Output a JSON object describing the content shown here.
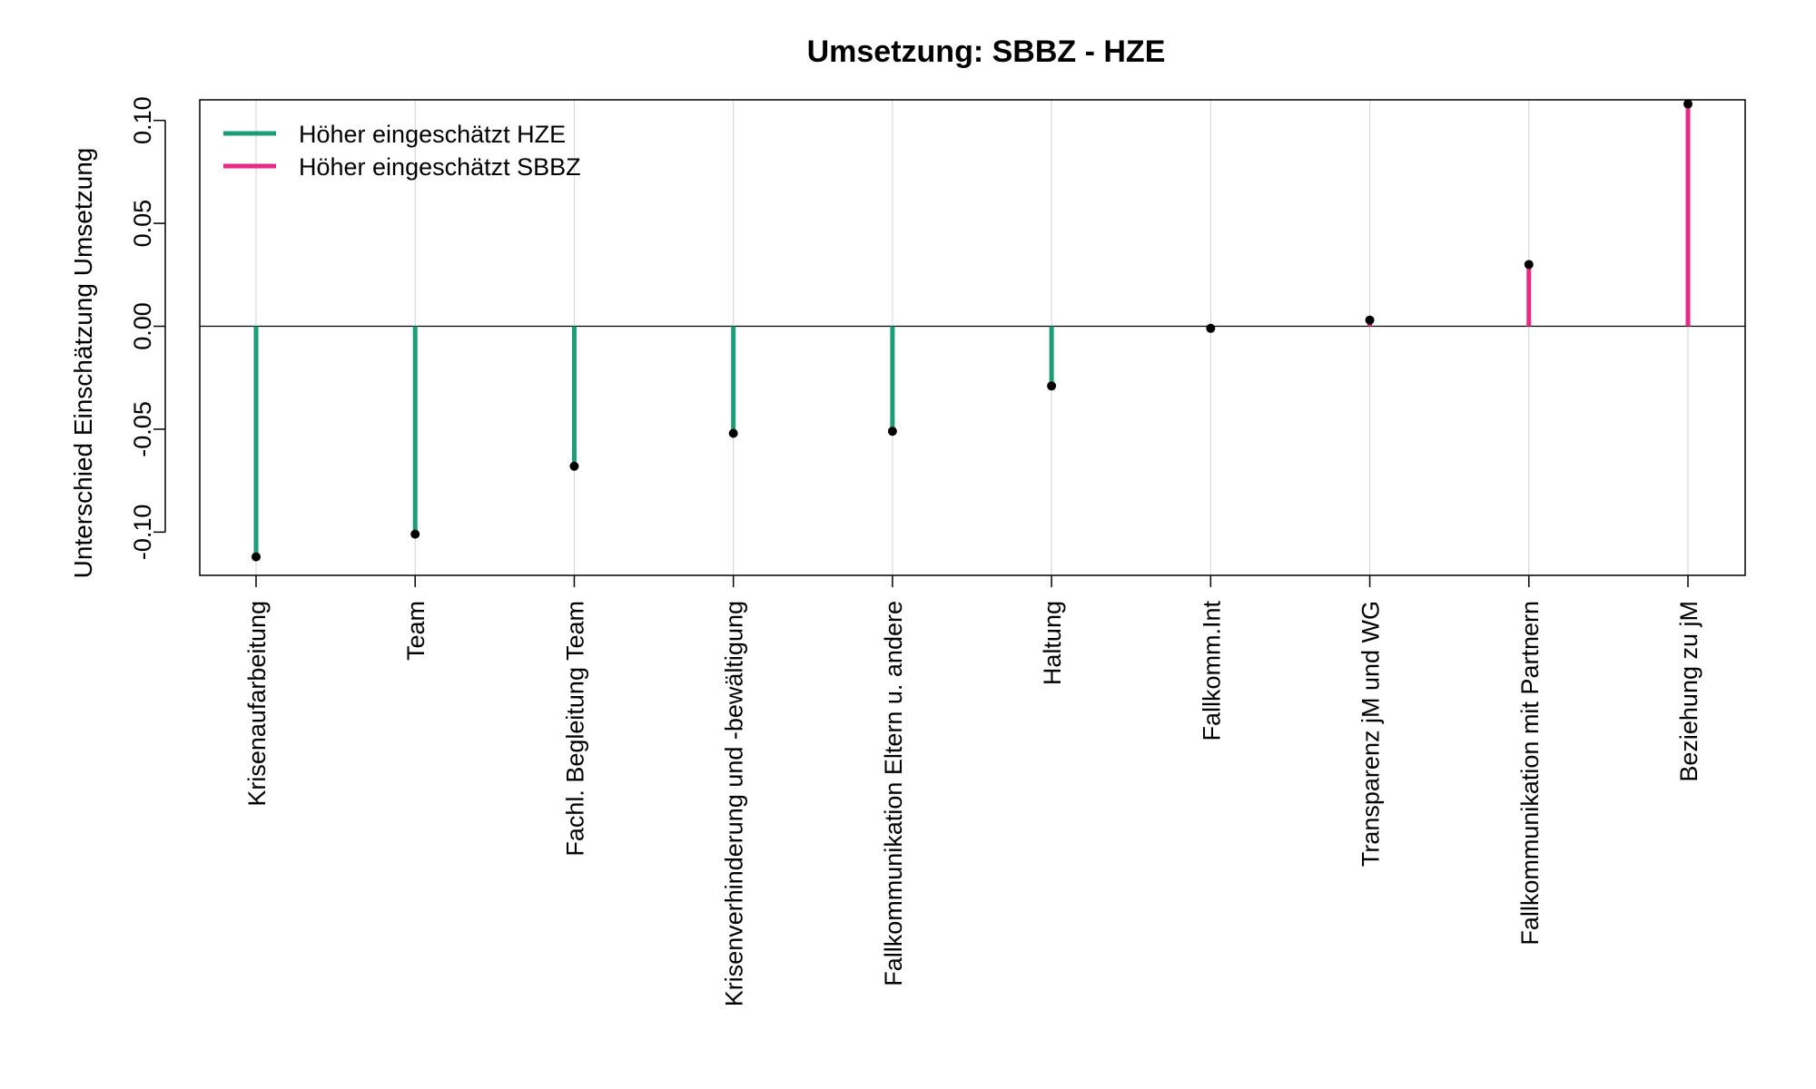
{
  "chart_data": {
    "type": "lollipop",
    "title": "Umsetzung: SBBZ - HZE",
    "xlabel": "",
    "ylabel": "Unterschied Einschätzung Umsetzung",
    "ylim": [
      -0.121,
      0.11
    ],
    "yticks": [
      -0.1,
      -0.05,
      0.0,
      0.05,
      0.1
    ],
    "ytick_labels": [
      "-0.10",
      "-0.05",
      "0.00",
      "0.05",
      "0.10"
    ],
    "categories": [
      "Krisenaufarbeitung",
      "Team",
      "Fachl. Begleitung Team",
      "Krisenverhinderung und -bewältigung",
      "Fallkommunikation Eltern u. andere",
      "Haltung",
      "Fallkomm.Int",
      "Transparenz jM und WG",
      "Fallkommunikation mit Partnern",
      "Beziehung zu jM"
    ],
    "values": [
      -0.112,
      -0.101,
      -0.068,
      -0.052,
      -0.051,
      -0.029,
      -0.001,
      0.003,
      0.03,
      0.108
    ],
    "legend": {
      "placement": "top-left",
      "entries": [
        {
          "label": "Höher eingeschätzt HZE",
          "color": "#1b9e77"
        },
        {
          "label": "Höher eingeschätzt SBBZ",
          "color": "#e7298a"
        }
      ]
    },
    "colors": {
      "negative": "#1b9e77",
      "positive": "#e7298a",
      "point": "#000000",
      "guide": "#d3d3d3",
      "zero_line": "#000000"
    },
    "grid": false
  }
}
